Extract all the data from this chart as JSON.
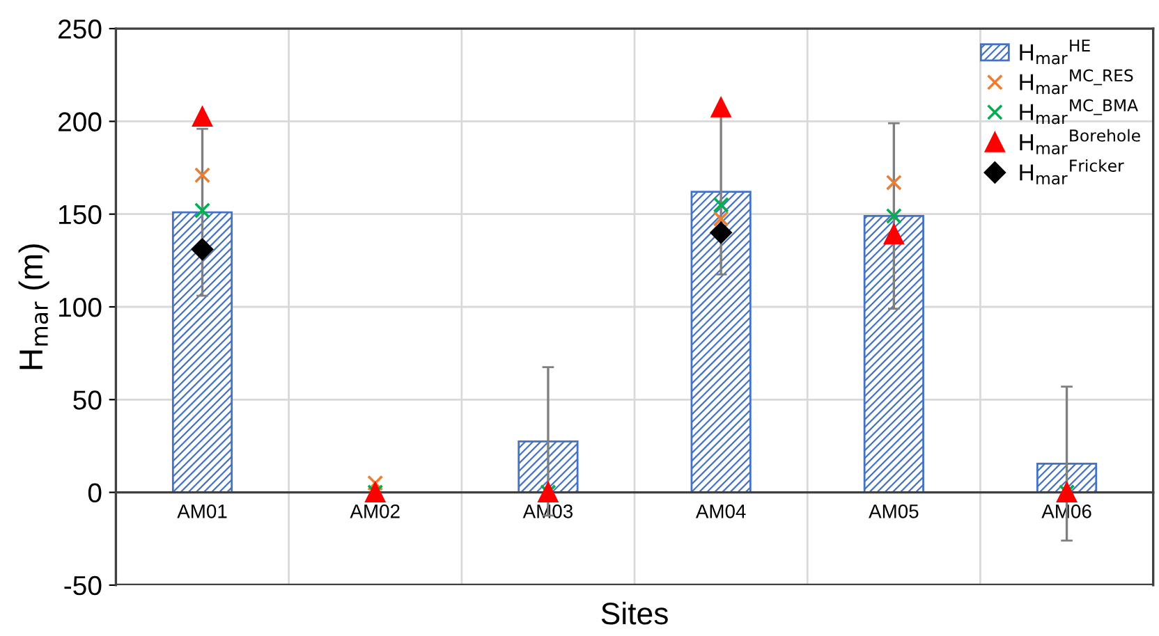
{
  "chart_data": {
    "type": "bar",
    "xlabel": "Sites",
    "ylabel": "H$_{mar}$ (m)",
    "categories": [
      "AM01",
      "AM02",
      "AM03",
      "AM04",
      "AM05",
      "AM06"
    ],
    "series": [
      {
        "name": "H$_{mar}$$^{HE}$",
        "color": "#4472c4",
        "values": [
          151,
          0,
          27.5,
          162,
          149,
          15.5
        ],
        "errors": [
          45,
          null,
          40,
          44.5,
          50,
          41.5
        ]
      },
      {
        "name": "H$_{mar}$$^{MC_RES}$",
        "type": "scatter",
        "marker": "cross",
        "color": "#ed7d31",
        "values": [
          171,
          5,
          0,
          147.5,
          167,
          0
        ]
      },
      {
        "name": "H$_{mar}$$^{MC_BMA}$",
        "type": "scatter",
        "marker": "cross",
        "color": "#00b050",
        "values": [
          152,
          0,
          0,
          155,
          149,
          0
        ]
      },
      {
        "name": "H$_{mar}$$^{Borehole}$",
        "type": "scatter",
        "marker": "triangle",
        "color": "#ff0000",
        "values": [
          202.5,
          0,
          0,
          207.5,
          139,
          0
        ]
      },
      {
        "name": "H$_{mar}$$^{Fricker}$",
        "type": "scatter",
        "marker": "diamond",
        "color": "#000000",
        "values": [
          131,
          null,
          null,
          140,
          null,
          null
        ]
      }
    ],
    "ylim": [
      -50,
      250
    ],
    "yticks": [
      -50,
      0,
      50,
      100,
      150,
      200,
      250
    ],
    "grid": true,
    "legend": "top right"
  }
}
